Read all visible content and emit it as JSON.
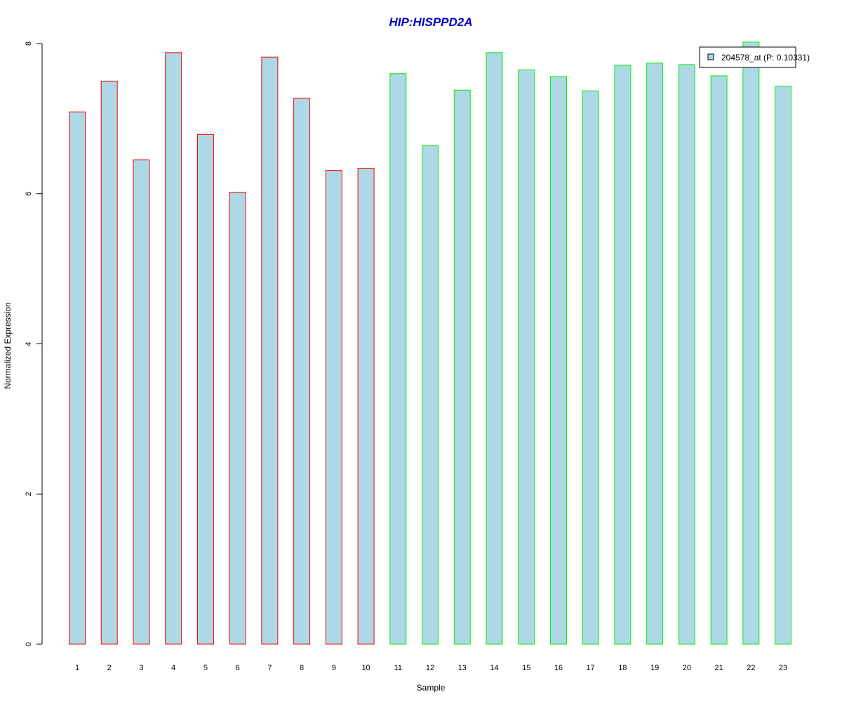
{
  "chart_data": {
    "type": "bar",
    "title": "HIP:HISPPD2A",
    "xlabel": "Sample",
    "ylabel": "Normalized Expression",
    "ylim": [
      0,
      8
    ],
    "yticks": [
      0,
      2,
      4,
      6,
      8
    ],
    "grid": false,
    "legend_position": "top-right",
    "categories": [
      "1",
      "2",
      "3",
      "4",
      "5",
      "6",
      "7",
      "8",
      "9",
      "10",
      "11",
      "12",
      "13",
      "14",
      "15",
      "16",
      "17",
      "18",
      "19",
      "20",
      "21",
      "22",
      "23"
    ],
    "series": [
      {
        "name": "204578_at (P: 0.10331)",
        "values": [
          7.09,
          7.5,
          6.45,
          7.88,
          6.79,
          6.02,
          7.82,
          7.27,
          6.31,
          6.34,
          7.6,
          6.64,
          7.38,
          7.88,
          7.65,
          7.56,
          7.37,
          7.71,
          7.74,
          7.72,
          7.57,
          8.02,
          7.43
        ]
      }
    ],
    "colors": {
      "title": "#0000cc",
      "bar_fill": "#add8e6",
      "group1_border": "#ff0000",
      "group2_border": "#00ee00",
      "axis": "#000000"
    },
    "border_groups": [
      "group1",
      "group1",
      "group1",
      "group1",
      "group1",
      "group1",
      "group1",
      "group1",
      "group1",
      "group1",
      "group2",
      "group2",
      "group2",
      "group2",
      "group2",
      "group2",
      "group2",
      "group2",
      "group2",
      "group2",
      "group2",
      "group2",
      "group2"
    ]
  }
}
